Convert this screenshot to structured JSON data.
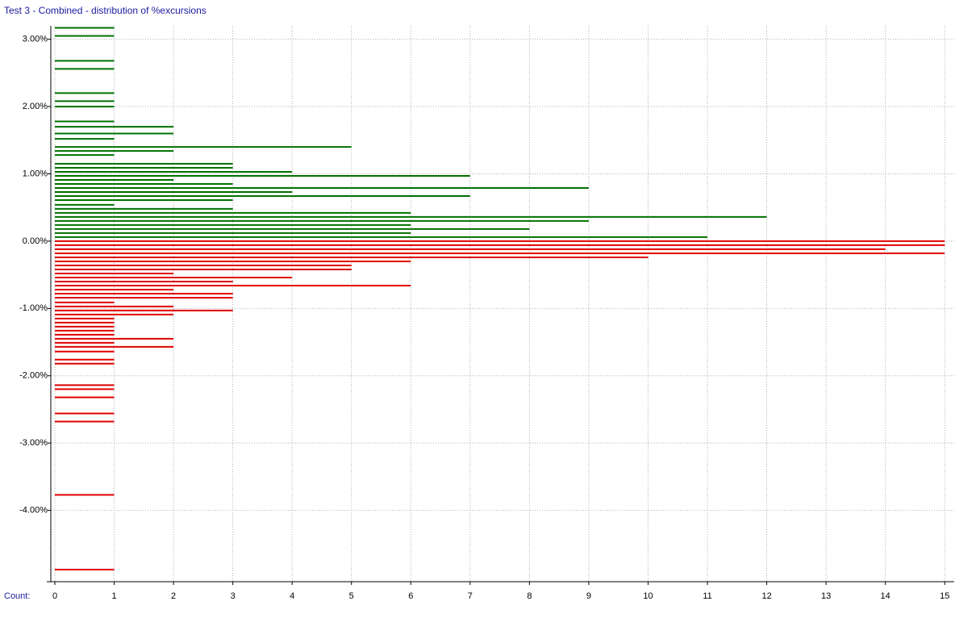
{
  "chart_data": {
    "type": "bar",
    "orientation": "horizontal",
    "title": "Test 3 - Combined - distribution of %excursions",
    "x_label": "Count:",
    "xlim": [
      0,
      15.16
    ],
    "xticks": [
      0,
      1,
      2,
      3,
      4,
      5,
      6,
      7,
      8,
      9,
      10,
      11,
      12,
      13,
      14,
      15
    ],
    "ylim": [
      -5.06,
      3.2
    ],
    "yticks": [
      {
        "value": 3,
        "label": "3.00%"
      },
      {
        "value": 2,
        "label": "2.00%"
      },
      {
        "value": 1,
        "label": "1.00%"
      },
      {
        "value": 0,
        "label": "0.00%"
      },
      {
        "value": -1,
        "label": "-1.00%"
      },
      {
        "value": -2,
        "label": "-2.00%"
      },
      {
        "value": -3,
        "label": "-3.00%"
      },
      {
        "value": -4,
        "label": "-4.00%"
      }
    ],
    "grid": true,
    "series": [
      {
        "color": "#007000",
        "y": [
          3.17,
          3.05,
          2.68,
          2.56,
          2.2,
          2.08,
          2.0,
          1.78,
          1.7,
          1.6,
          1.52,
          1.4,
          1.34,
          1.28,
          1.15,
          1.09,
          1.03,
          0.97,
          0.91,
          0.85,
          0.79,
          0.73,
          0.67,
          0.61,
          0.54,
          0.48,
          0.42,
          0.36,
          0.3,
          0.24,
          0.18,
          0.12,
          0.06
        ],
        "values": [
          1,
          1,
          1,
          1,
          1,
          1,
          1,
          1,
          2,
          2,
          1,
          5,
          2,
          1,
          3,
          3,
          4,
          7,
          2,
          3,
          9,
          4,
          7,
          3,
          1,
          3,
          6,
          12,
          9,
          6,
          8,
          6,
          11
        ]
      },
      {
        "color": "#e00000",
        "y": [
          0.0,
          -0.06,
          -0.12,
          -0.18,
          -0.24,
          -0.3,
          -0.36,
          -0.42,
          -0.48,
          -0.54,
          -0.6,
          -0.66,
          -0.72,
          -0.78,
          -0.84,
          -0.91,
          -0.97,
          -1.03,
          -1.09,
          -1.15,
          -1.21,
          -1.27,
          -1.33,
          -1.39,
          -1.45,
          -1.51,
          -1.57,
          -1.64,
          -1.76,
          -1.82,
          -2.14,
          -2.2,
          -2.32,
          -2.56,
          -2.68,
          -3.77,
          -4.88
        ],
        "values": [
          15,
          15,
          14,
          15,
          10,
          6,
          5,
          5,
          2,
          4,
          3,
          6,
          2,
          3,
          3,
          1,
          2,
          3,
          2,
          1,
          1,
          1,
          1,
          1,
          2,
          1,
          2,
          1,
          1,
          1,
          1,
          1,
          1,
          1,
          1,
          1,
          1
        ]
      }
    ]
  }
}
